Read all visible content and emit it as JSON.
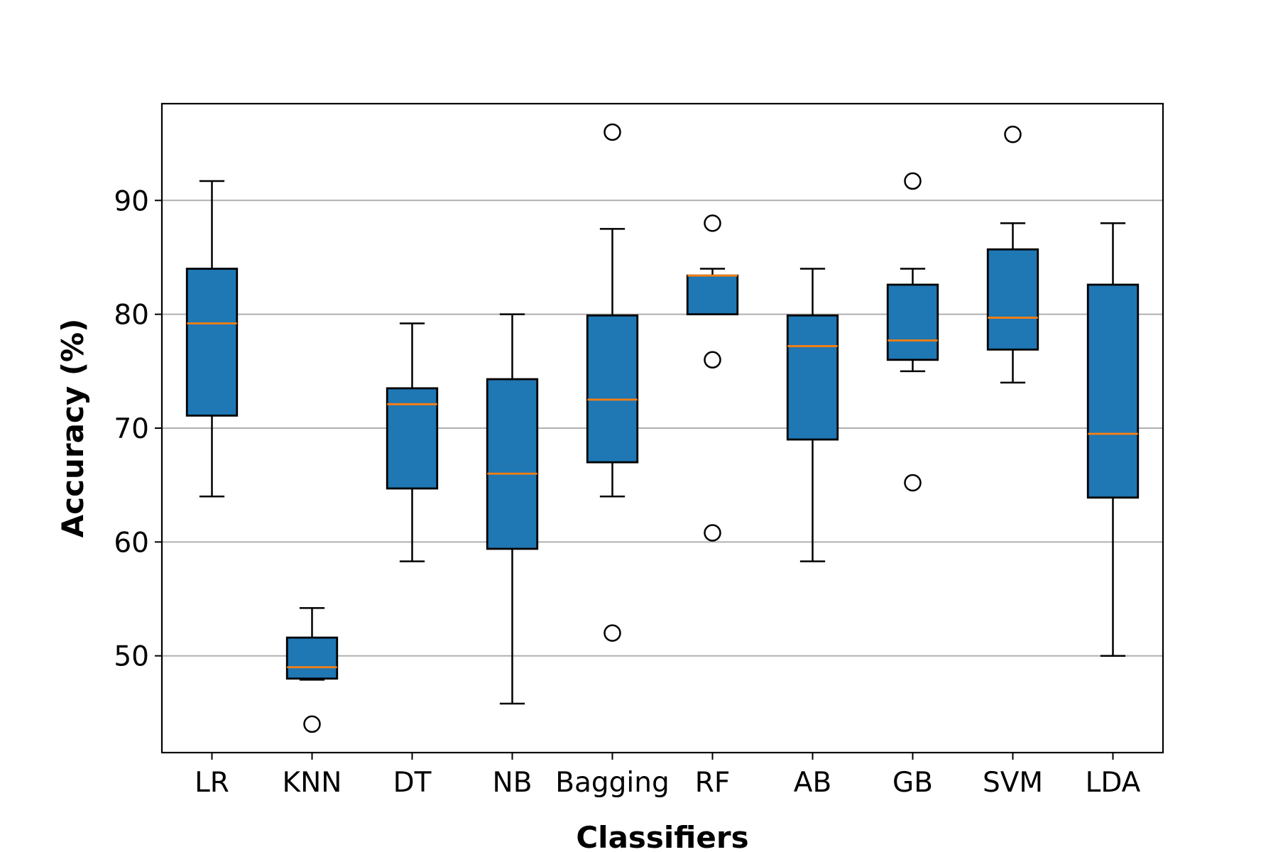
{
  "chart_data": {
    "type": "boxplot",
    "title": "",
    "xlabel": "Classifiers",
    "ylabel": "Accuracy (%)",
    "ylim": [
      41.5,
      98.5
    ],
    "yticks": [
      50,
      60,
      70,
      80,
      90
    ],
    "grid": "horizontal",
    "colors": {
      "box_fill": "#1f77b4",
      "median": "#ff7f0e",
      "edge": "#000000",
      "grid": "#b0b0b0"
    },
    "categories": [
      "LR",
      "KNN",
      "DT",
      "NB",
      "Bagging",
      "RF",
      "AB",
      "GB",
      "SVM",
      "LDA"
    ],
    "boxes": [
      {
        "label": "LR",
        "whislo": 64.0,
        "q1": 71.1,
        "median": 79.2,
        "q3": 84.0,
        "whishi": 91.7,
        "fliers": []
      },
      {
        "label": "KNN",
        "whislo": 47.9,
        "q1": 48.0,
        "median": 49.0,
        "q3": 51.6,
        "whishi": 54.2,
        "fliers": [
          44.0
        ]
      },
      {
        "label": "DT",
        "whislo": 58.3,
        "q1": 64.7,
        "median": 72.1,
        "q3": 73.5,
        "whishi": 79.2,
        "fliers": []
      },
      {
        "label": "NB",
        "whislo": 45.8,
        "q1": 59.4,
        "median": 66.0,
        "q3": 74.3,
        "whishi": 80.0,
        "fliers": []
      },
      {
        "label": "Bagging",
        "whislo": 64.0,
        "q1": 67.0,
        "median": 72.5,
        "q3": 79.9,
        "whishi": 87.5,
        "fliers": [
          96.0,
          52.0
        ]
      },
      {
        "label": "RF",
        "whislo": 80.0,
        "q1": 80.0,
        "median": 83.4,
        "q3": 83.4,
        "whishi": 84.0,
        "fliers": [
          88.0,
          76.0,
          60.8
        ]
      },
      {
        "label": "AB",
        "whislo": 58.3,
        "q1": 69.0,
        "median": 77.2,
        "q3": 79.9,
        "whishi": 84.0,
        "fliers": []
      },
      {
        "label": "GB",
        "whislo": 75.0,
        "q1": 76.0,
        "median": 77.7,
        "q3": 82.6,
        "whishi": 84.0,
        "fliers": [
          91.7,
          65.2
        ]
      },
      {
        "label": "SVM",
        "whislo": 74.0,
        "q1": 76.9,
        "median": 79.7,
        "q3": 85.7,
        "whishi": 88.0,
        "fliers": [
          95.8
        ]
      },
      {
        "label": "LDA",
        "whislo": 50.0,
        "q1": 63.9,
        "median": 69.5,
        "q3": 82.6,
        "whishi": 88.0,
        "fliers": []
      }
    ]
  }
}
